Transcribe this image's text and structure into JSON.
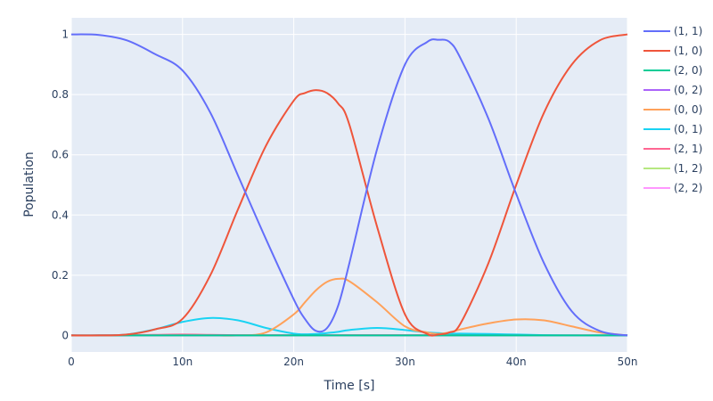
{
  "chart_data": {
    "type": "line",
    "title": "",
    "xlabel": "Time [s]",
    "ylabel": "Population",
    "xlim": [
      0,
      5e-08
    ],
    "ylim": [
      -0.055,
      1.055
    ],
    "x_ticks": [
      0,
      1e-08,
      2e-08,
      3e-08,
      4e-08,
      5e-08
    ],
    "x_tick_labels": [
      "0",
      "10n",
      "20n",
      "30n",
      "40n",
      "50n"
    ],
    "y_ticks": [
      0,
      0.2,
      0.4,
      0.6,
      0.8,
      1
    ],
    "y_tick_labels": [
      "0",
      "0.2",
      "0.4",
      "0.6",
      "0.8",
      "1"
    ],
    "grid": true,
    "legend_position": "right",
    "x": [
      0,
      2.5e-09,
      5e-09,
      7.5e-09,
      1e-08,
      1.25e-08,
      1.5e-08,
      1.75e-08,
      2e-08,
      2.1e-08,
      2.2e-08,
      2.3e-08,
      2.4e-08,
      2.5e-08,
      2.75e-08,
      3e-08,
      3.2e-08,
      3.3e-08,
      3.4e-08,
      3.5e-08,
      3.75e-08,
      4e-08,
      4.25e-08,
      4.5e-08,
      4.75e-08,
      5e-08
    ],
    "series": [
      {
        "name": "(1, 1)",
        "color": "#636efa",
        "values": [
          1.0,
          0.998,
          0.98,
          0.935,
          0.88,
          0.74,
          0.53,
          0.32,
          0.12,
          0.055,
          0.015,
          0.025,
          0.1,
          0.24,
          0.62,
          0.9,
          0.975,
          0.982,
          0.975,
          0.92,
          0.72,
          0.47,
          0.24,
          0.08,
          0.015,
          0.0
        ]
      },
      {
        "name": "(1, 0)",
        "color": "#ef553b",
        "values": [
          0.0,
          0.0,
          0.003,
          0.02,
          0.055,
          0.2,
          0.42,
          0.63,
          0.78,
          0.805,
          0.815,
          0.805,
          0.77,
          0.7,
          0.36,
          0.07,
          0.005,
          0.003,
          0.01,
          0.04,
          0.24,
          0.5,
          0.74,
          0.9,
          0.98,
          1.0
        ]
      },
      {
        "name": "(2, 0)",
        "color": "#00cc96",
        "values": [
          0.0,
          0.0,
          0.0,
          0.0,
          0.0,
          0.0,
          0.0,
          0.0,
          0.0,
          0.0,
          0.0,
          0.0,
          0.0,
          0.0,
          0.0,
          0.0,
          0.0,
          0.0,
          0.0,
          0.0,
          0.0,
          0.0,
          0.0,
          0.0,
          0.0,
          0.0
        ]
      },
      {
        "name": "(0, 2)",
        "color": "#ab63fa",
        "values": [
          0.0,
          0.0,
          0.0,
          0.0,
          0.0,
          0.0,
          0.0,
          0.0,
          0.0,
          0.0,
          0.0,
          0.0,
          0.0,
          0.0,
          0.0,
          0.0,
          0.0,
          0.0,
          0.0,
          0.0,
          0.0,
          0.0,
          0.0,
          0.0,
          0.0,
          0.0
        ]
      },
      {
        "name": "(0, 0)",
        "color": "#ffa15a",
        "values": [
          0.0,
          0.0,
          0.0,
          0.0,
          0.0,
          0.0,
          0.0,
          0.01,
          0.07,
          0.11,
          0.15,
          0.178,
          0.188,
          0.18,
          0.11,
          0.03,
          0.01,
          0.005,
          0.01,
          0.02,
          0.04,
          0.053,
          0.05,
          0.03,
          0.01,
          0.0
        ]
      },
      {
        "name": "(0, 1)",
        "color": "#19d3f3",
        "values": [
          0.0,
          0.0,
          0.003,
          0.02,
          0.045,
          0.058,
          0.05,
          0.025,
          0.006,
          0.004,
          0.005,
          0.008,
          0.012,
          0.018,
          0.025,
          0.018,
          0.01,
          0.008,
          0.006,
          0.006,
          0.005,
          0.003,
          0.001,
          0.0,
          0.0,
          0.0
        ]
      },
      {
        "name": "(2, 1)",
        "color": "#ff6692",
        "values": [
          0.0,
          0.0,
          0.001,
          0.002,
          0.003,
          0.002,
          0.001,
          0.001,
          0.001,
          0.001,
          0.001,
          0.001,
          0.001,
          0.001,
          0.001,
          0.001,
          0.001,
          0.001,
          0.001,
          0.001,
          0.001,
          0.001,
          0.0,
          0.0,
          0.0,
          0.0
        ]
      },
      {
        "name": "(1, 2)",
        "color": "#b6e880",
        "values": [
          0.0,
          0.0,
          0.0,
          0.0,
          0.0,
          0.0,
          0.0,
          0.0,
          0.0,
          0.0,
          0.0,
          0.0,
          0.0,
          0.0,
          0.0,
          0.0,
          0.0,
          0.0,
          0.0,
          0.0,
          0.0,
          0.0,
          0.0,
          0.0,
          0.0,
          0.0
        ]
      },
      {
        "name": "(2, 2)",
        "color": "#ff97ff",
        "values": [
          0.0,
          0.0,
          0.0,
          0.0,
          0.0,
          0.0,
          0.0,
          0.0,
          0.0,
          0.0,
          0.0,
          0.0,
          0.0,
          0.0,
          0.0,
          0.0,
          0.0,
          0.0,
          0.0,
          0.0,
          0.0,
          0.0,
          0.0,
          0.0,
          0.0,
          0.0
        ]
      }
    ]
  }
}
